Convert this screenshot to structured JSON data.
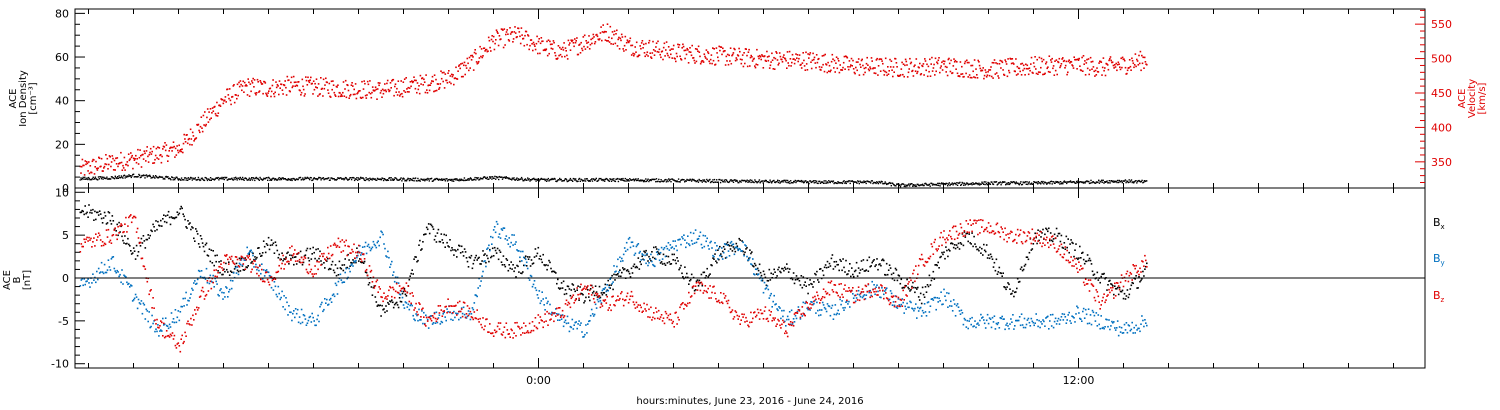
{
  "chart_data": [
    {
      "type": "scatter",
      "panel": "top",
      "xlabel": "hours:minutes, June 23, 2016 - June 24, 2016",
      "x_tick_labels": [
        "0:00",
        "12:00"
      ],
      "x_unit": "hours",
      "xlim": [
        -10.3,
        19.7
      ],
      "left_axis": {
        "label_lines": [
          "ACE",
          "Ion Density",
          "[cm⁻³]"
        ],
        "ylim": [
          0,
          82
        ],
        "ticks": [
          "0",
          "20",
          "40",
          "60",
          "80"
        ],
        "color": "#000000"
      },
      "right_axis": {
        "label_lines": [
          "ACE",
          "Velocity",
          "[km/s]"
        ],
        "ylim": [
          312,
          572
        ],
        "ticks": [
          "350",
          "400",
          "450",
          "500",
          "550"
        ],
        "color": "#e00000"
      },
      "series": [
        {
          "name": "Ion Density",
          "axis": "left",
          "color": "#000000",
          "x": [
            -10.2,
            -9.5,
            -9.0,
            -8.0,
            -6.0,
            -4.0,
            -2.0,
            -1.0,
            0.0,
            2.0,
            4.0,
            6.0,
            7.5,
            8.0,
            9.0,
            10.0,
            11.0,
            12.0,
            13.0,
            13.5
          ],
          "y": [
            4.5,
            5.0,
            6.0,
            4.5,
            4.5,
            4.5,
            4.0,
            5.0,
            4.0,
            4.0,
            3.5,
            3.0,
            3.0,
            1.5,
            2.0,
            2.5,
            2.5,
            3.0,
            3.5,
            3.0
          ]
        },
        {
          "name": "Velocity",
          "axis": "right",
          "color": "#e00000",
          "x": [
            -10.2,
            -9.5,
            -9.0,
            -8.5,
            -8.0,
            -7.5,
            -7.0,
            -6.5,
            -6.0,
            -5.5,
            -4.5,
            -3.5,
            -3.0,
            -2.5,
            -2.0,
            -1.5,
            -1.0,
            -0.5,
            0.0,
            0.5,
            1.0,
            1.5,
            2.0,
            3.0,
            4.0,
            5.0,
            6.0,
            7.0,
            8.0,
            9.0,
            10.0,
            11.0,
            12.0,
            12.5,
            13.0,
            13.5
          ],
          "y": [
            340,
            350,
            355,
            362,
            370,
            405,
            442,
            460,
            458,
            462,
            458,
            455,
            460,
            465,
            472,
            495,
            528,
            535,
            520,
            510,
            525,
            540,
            520,
            510,
            505,
            500,
            498,
            490,
            488,
            490,
            485,
            490,
            492,
            488,
            492,
            500
          ]
        }
      ]
    },
    {
      "type": "scatter",
      "panel": "bottom",
      "x_unit": "hours",
      "xlim": [
        -10.3,
        19.7
      ],
      "left_axis": {
        "label_lines": [
          "ACE",
          "B",
          "[nT]"
        ],
        "ylim": [
          -10.5,
          10.5
        ],
        "ticks": [
          "-10",
          "-5",
          "0",
          "5",
          "10"
        ],
        "color": "#000000"
      },
      "zero_line": true,
      "legend_placement": "right",
      "series": [
        {
          "name": "Bx",
          "name_main": "B",
          "name_sub": "x",
          "color": "#000000",
          "x": [
            -10.2,
            -9.5,
            -9.0,
            -8.5,
            -8.0,
            -7.5,
            -7.0,
            -6.5,
            -6.0,
            -5.5,
            -5.0,
            -4.5,
            -4.0,
            -3.5,
            -3.0,
            -2.5,
            -2.0,
            -1.5,
            -1.0,
            -0.5,
            0.0,
            0.5,
            1.0,
            1.5,
            2.0,
            2.5,
            3.0,
            3.5,
            4.0,
            4.5,
            5.0,
            5.5,
            6.0,
            6.5,
            7.0,
            7.5,
            8.0,
            8.5,
            9.0,
            9.5,
            10.0,
            10.5,
            11.0,
            11.5,
            12.0,
            12.5,
            13.0,
            13.5
          ],
          "y": [
            8,
            7,
            3,
            6,
            8,
            4,
            1,
            2,
            4,
            2,
            3,
            1,
            3,
            -4,
            -2,
            6,
            4,
            2,
            3,
            1,
            3,
            -1,
            -2,
            -1,
            1,
            3,
            2,
            -1,
            3,
            4,
            0,
            1,
            -1,
            2,
            1,
            2,
            0,
            -2,
            3,
            5,
            3,
            -2,
            5,
            5,
            3,
            0,
            -2,
            1
          ]
        },
        {
          "name": "By",
          "name_main": "B",
          "name_sub": "y",
          "color": "#0070c0",
          "x": [
            -10.2,
            -9.5,
            -9.0,
            -8.5,
            -8.0,
            -7.5,
            -7.0,
            -6.5,
            -6.0,
            -5.5,
            -5.0,
            -4.5,
            -4.0,
            -3.5,
            -3.0,
            -2.5,
            -2.0,
            -1.5,
            -1.0,
            -0.5,
            0.0,
            0.5,
            1.0,
            1.5,
            2.0,
            2.5,
            3.0,
            3.5,
            4.0,
            4.5,
            5.0,
            5.5,
            6.0,
            6.5,
            7.0,
            7.5,
            8.0,
            8.5,
            9.0,
            9.5,
            10.0,
            10.5,
            11.0,
            11.5,
            12.0,
            12.5,
            13.0,
            13.5
          ],
          "y": [
            -1,
            2,
            -2,
            -6,
            -4,
            1,
            -2,
            3,
            0,
            -4,
            -5,
            -1,
            3,
            5,
            -3,
            -5,
            -4,
            -4,
            6,
            4,
            -2,
            -5,
            -6,
            -1,
            4,
            2,
            4,
            5,
            3,
            4,
            -1,
            -5,
            -3,
            -4,
            -2,
            -1,
            -3,
            -4,
            -2,
            -5,
            -5,
            -5,
            -5,
            -5,
            -4,
            -5,
            -6,
            -5
          ]
        },
        {
          "name": "Bz",
          "name_main": "B",
          "name_sub": "z",
          "color": "#e00000",
          "x": [
            -10.2,
            -9.5,
            -9.0,
            -8.5,
            -8.0,
            -7.5,
            -7.0,
            -6.5,
            -6.0,
            -5.5,
            -5.0,
            -4.5,
            -4.0,
            -3.5,
            -3.0,
            -2.5,
            -2.0,
            -1.5,
            -1.0,
            -0.5,
            0.0,
            0.5,
            1.0,
            1.5,
            2.0,
            2.5,
            3.0,
            3.5,
            4.0,
            4.5,
            5.0,
            5.5,
            6.0,
            6.5,
            7.0,
            7.5,
            8.0,
            8.5,
            9.0,
            9.5,
            10.0,
            10.5,
            11.0,
            11.5,
            12.0,
            12.5,
            13.0,
            13.5
          ],
          "y": [
            4,
            5,
            7,
            -5,
            -8,
            -2,
            2,
            2,
            0,
            3,
            1,
            4,
            3,
            -2,
            -1,
            -5,
            -3,
            -4,
            -6,
            -6,
            -5,
            -4,
            -1,
            -3,
            -2,
            -4,
            -5,
            -1,
            -2,
            -5,
            -4,
            -6,
            -3,
            -1,
            -2,
            -1,
            -3,
            2,
            5,
            6,
            6,
            5,
            5,
            4,
            1,
            -3,
            0,
            2
          ]
        }
      ]
    }
  ]
}
